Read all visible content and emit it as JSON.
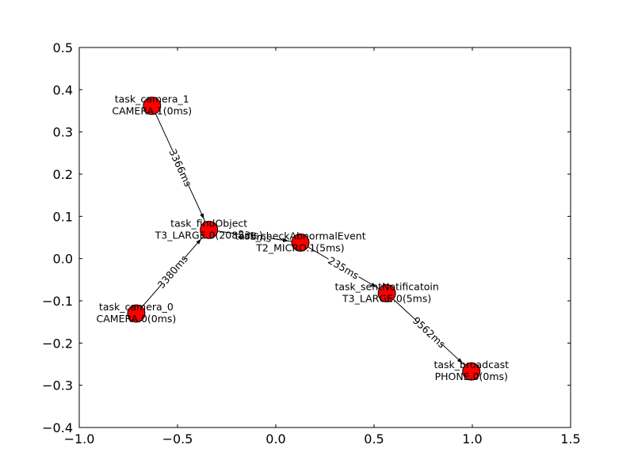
{
  "chart_data": {
    "type": "network",
    "title": "",
    "xlabel": "",
    "ylabel": "",
    "xlim": [
      -1.0,
      1.5
    ],
    "ylim": [
      -0.4,
      0.5
    ],
    "x_ticks": [
      -1.0,
      -0.5,
      0.0,
      0.5,
      1.0,
      1.5
    ],
    "y_ticks": [
      -0.4,
      -0.3,
      -0.2,
      -0.1,
      0.0,
      0.1,
      0.2,
      0.3,
      0.4,
      0.5
    ],
    "x_tick_labels": [
      "−1.0",
      "−0.5",
      "0.0",
      "0.5",
      "1.0",
      "1.5"
    ],
    "y_tick_labels": [
      "−0.4",
      "−0.3",
      "−0.2",
      "−0.1",
      "0.0",
      "0.1",
      "0.2",
      "0.3",
      "0.4",
      "0.5"
    ],
    "node_color": "#ff0000",
    "node_edge_color": "#000000",
    "nodes": [
      {
        "id": "task_camera_1",
        "x": -0.63,
        "y": 0.362,
        "label_line1": "task_camera_1",
        "label_line2": "CAMERA.1(0ms)"
      },
      {
        "id": "task_camera_0",
        "x": -0.71,
        "y": -0.13,
        "label_line1": "task_camera_0",
        "label_line2": "CAMERA.0(0ms)"
      },
      {
        "id": "task_findObject",
        "x": -0.34,
        "y": 0.068,
        "label_line1": "task_findObject",
        "label_line2": "T3_LARGE.0(2085ms)"
      },
      {
        "id": "task_checkAbnormalEvent",
        "x": 0.125,
        "y": 0.038,
        "label_line1": "task_checkAbnormalEvent",
        "label_line2": "T2_MICRO.1(5ms)"
      },
      {
        "id": "task_sentNotificatoin",
        "x": 0.565,
        "y": -0.082,
        "label_line1": "task_sentNotificatoin",
        "label_line2": "T3_LARGE.0(5ms)"
      },
      {
        "id": "task_broadcast",
        "x": 0.995,
        "y": -0.267,
        "label_line1": "task_broadcast",
        "label_line2": "PHONE.0(0ms)"
      }
    ],
    "edges": [
      {
        "source": "task_camera_1",
        "target": "task_findObject",
        "label": "3366ms"
      },
      {
        "source": "task_camera_0",
        "target": "task_findObject",
        "label": "3380ms"
      },
      {
        "source": "task_findObject",
        "target": "task_checkAbnormalEvent",
        "label": "235ms"
      },
      {
        "source": "task_checkAbnormalEvent",
        "target": "task_sentNotificatoin",
        "label": "235ms"
      },
      {
        "source": "task_sentNotificatoin",
        "target": "task_broadcast",
        "label": "9562ms"
      }
    ]
  }
}
